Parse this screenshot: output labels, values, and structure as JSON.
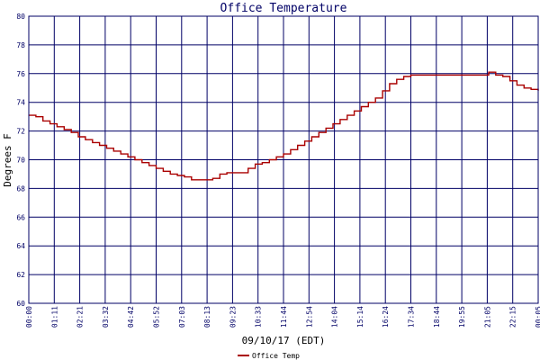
{
  "chart_data": {
    "type": "line",
    "title": "Office Temperature",
    "xlabel": "09/10/17 (EDT)",
    "ylabel": "Degrees F",
    "ylim": [
      60,
      80
    ],
    "yticks": [
      "60",
      "62",
      "64",
      "66",
      "68",
      "70",
      "72",
      "74",
      "76",
      "78",
      "80"
    ],
    "xticks": [
      "00:00",
      "01:11",
      "02:21",
      "03:32",
      "04:42",
      "05:52",
      "07:03",
      "08:13",
      "09:23",
      "10:33",
      "11:44",
      "12:54",
      "14:04",
      "15:14",
      "16:24",
      "17:34",
      "18:44",
      "19:55",
      "21:05",
      "22:15",
      "00:05"
    ],
    "grid": true,
    "legend_position": "bottom-left",
    "colors": {
      "series": "#aa0000",
      "grid": "#000066",
      "axis_text": "#000066",
      "text": "#000000"
    },
    "series": [
      {
        "name": "Office Temp",
        "x": [
          "00:00",
          "00:20",
          "00:40",
          "01:00",
          "01:20",
          "01:40",
          "02:00",
          "02:20",
          "02:40",
          "03:00",
          "03:20",
          "03:40",
          "04:00",
          "04:20",
          "04:40",
          "05:00",
          "05:20",
          "05:40",
          "06:00",
          "06:20",
          "06:40",
          "07:00",
          "07:20",
          "07:40",
          "08:00",
          "08:20",
          "08:40",
          "09:00",
          "09:20",
          "09:40",
          "10:00",
          "10:20",
          "10:40",
          "11:00",
          "11:20",
          "11:40",
          "12:00",
          "12:20",
          "12:40",
          "13:00",
          "13:20",
          "13:40",
          "14:00",
          "14:20",
          "14:40",
          "15:00",
          "15:20",
          "15:40",
          "16:00",
          "16:20",
          "16:40",
          "17:00",
          "17:20",
          "17:40",
          "18:00",
          "18:20",
          "18:40",
          "19:00",
          "19:20",
          "19:40",
          "20:00",
          "20:20",
          "20:40",
          "21:00",
          "21:20",
          "21:40",
          "22:00",
          "22:20",
          "22:40",
          "23:00",
          "23:20",
          "23:40",
          "00:00"
        ],
        "values": [
          73.1,
          73.0,
          72.7,
          72.5,
          72.3,
          72.1,
          71.9,
          71.6,
          71.4,
          71.2,
          71.0,
          70.8,
          70.6,
          70.4,
          70.2,
          70.0,
          69.8,
          69.6,
          69.4,
          69.2,
          69.0,
          68.9,
          68.8,
          68.6,
          68.6,
          68.6,
          68.7,
          69.0,
          69.1,
          69.1,
          69.1,
          69.4,
          69.7,
          69.8,
          70.0,
          70.2,
          70.4,
          70.7,
          71.0,
          71.3,
          71.6,
          71.9,
          72.2,
          72.5,
          72.8,
          73.1,
          73.4,
          73.7,
          74.0,
          74.3,
          74.8,
          75.3,
          75.6,
          75.8,
          75.9,
          75.9,
          75.9,
          75.9,
          75.9,
          75.9,
          75.9,
          75.9,
          75.9,
          75.9,
          75.9,
          76.1,
          75.9,
          75.8,
          75.5,
          75.2,
          75.0,
          74.9,
          74.8
        ]
      }
    ]
  }
}
